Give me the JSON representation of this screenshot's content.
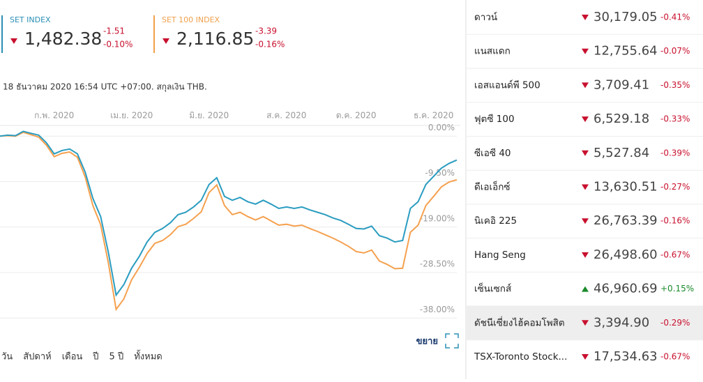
{
  "header": {
    "indices": [
      {
        "name": "SET INDEX",
        "value": "1,482.38",
        "change": "-1.51",
        "change_pct": "-0.10%",
        "color": "#2a8fb5"
      },
      {
        "name": "SET 100 INDEX",
        "value": "2,116.85",
        "change": "-3.39",
        "change_pct": "-0.16%",
        "color": "#f0a04b"
      }
    ]
  },
  "timestamp": "18 ธันวาคม 2020 16:54 UTC +07:00. สกุลเงิน THB.",
  "chart_data": {
    "type": "line",
    "categories": [
      null,
      null,
      null,
      null,
      null,
      null,
      null,
      "ก.พ. 2020",
      null,
      null,
      null,
      null,
      null,
      null,
      null,
      null,
      null,
      "เม.ย. 2020",
      null,
      null,
      null,
      null,
      null,
      null,
      null,
      null,
      null,
      "มิ.ย. 2020",
      null,
      null,
      null,
      null,
      null,
      null,
      null,
      null,
      null,
      "ส.ค. 2020",
      null,
      null,
      null,
      null,
      null,
      null,
      null,
      null,
      "ต.ค. 2020",
      null,
      null,
      null,
      null,
      null,
      null,
      null,
      null,
      null,
      "ธ.ค. 2020",
      null,
      null,
      null
    ],
    "series": [
      {
        "name": "SET INDEX",
        "color": "#2a9cc0",
        "values": [
          0,
          0.2,
          0.1,
          1.0,
          0.6,
          0.2,
          -1.4,
          -3.7,
          -3.0,
          -2.7,
          -3.7,
          -7.5,
          -13,
          -16.8,
          -24.3,
          -33.2,
          -31,
          -27.6,
          -25.1,
          -22.1,
          -20.1,
          -19.3,
          -18.1,
          -16.4,
          -15.9,
          -14.8,
          -13.4,
          -10.1,
          -8.7,
          -12.6,
          -13.4,
          -12.8,
          -13.7,
          -14.2,
          -13.4,
          -14.2,
          -15.1,
          -14.8,
          -15.1,
          -14.8,
          -15.4,
          -15.9,
          -16.4,
          -17.1,
          -17.6,
          -18.4,
          -19.3,
          -19.4,
          -18.8,
          -20.8,
          -21.3,
          -22.1,
          -21.8,
          -15.1,
          -13.7,
          -10.1,
          -8.4,
          -6.7,
          -5.7,
          -5.0
        ]
      },
      {
        "name": "SET 100 INDEX",
        "color": "#f5a04e",
        "values": [
          0,
          0.1,
          0.0,
          0.8,
          0.3,
          -0.2,
          -1.9,
          -4.3,
          -3.6,
          -3.3,
          -4.4,
          -8.5,
          -14.5,
          -18.5,
          -26.5,
          -36.2,
          -34,
          -30,
          -27.4,
          -24.5,
          -22.4,
          -21.8,
          -20.6,
          -18.9,
          -18.4,
          -17.2,
          -15.8,
          -11.8,
          -10.2,
          -14.5,
          -16.4,
          -15.9,
          -16.8,
          -17.5,
          -16.8,
          -17.7,
          -18.6,
          -18.4,
          -18.8,
          -18.6,
          -19.3,
          -19.9,
          -20.6,
          -21.3,
          -22.1,
          -23.0,
          -24.1,
          -24.4,
          -23.8,
          -26.1,
          -26.8,
          -27.7,
          -27.6,
          -20.1,
          -18.6,
          -14.5,
          -12.6,
          -10.6,
          -9.6,
          -9.1
        ]
      }
    ],
    "ylim": [
      -40,
      1.5
    ],
    "yticks": [
      {
        "value": 0,
        "label": "0.00%"
      },
      {
        "value": -9.5,
        "label": "-9.50%"
      },
      {
        "value": -19,
        "label": "-19.00%"
      },
      {
        "value": -28.5,
        "label": "-28.50%"
      },
      {
        "value": -38,
        "label": "-38.00%"
      }
    ],
    "grid": true
  },
  "expand_label": "ขยาย",
  "ranges": [
    "วัน",
    "สัปดาห์",
    "เดือน",
    "ปี",
    "5 ปี",
    "ทั้งหมด"
  ],
  "markets": [
    {
      "name": "ดาวน์",
      "value": "30,179.05",
      "change": "-0.41%",
      "direction": "down"
    },
    {
      "name": "แนสแดก",
      "value": "12,755.64",
      "change": "-0.07%",
      "direction": "down"
    },
    {
      "name": "เอสแอนด์พี 500",
      "value": "3,709.41",
      "change": "-0.35%",
      "direction": "down"
    },
    {
      "name": "ฟุตซี 100",
      "value": "6,529.18",
      "change": "-0.33%",
      "direction": "down"
    },
    {
      "name": "ซีเอซี 40",
      "value": "5,527.84",
      "change": "-0.39%",
      "direction": "down"
    },
    {
      "name": "ดีเอเอ็กซ์",
      "value": "13,630.51",
      "change": "-0.27%",
      "direction": "down"
    },
    {
      "name": "นิเคอิ 225",
      "value": "26,763.39",
      "change": "-0.16%",
      "direction": "down"
    },
    {
      "name": "Hang Seng",
      "value": "26,498.60",
      "change": "-0.67%",
      "direction": "down"
    },
    {
      "name": "เซ็นเซกส์",
      "value": "46,960.69",
      "change": "+0.15%",
      "direction": "up"
    },
    {
      "name": "ดัชนีเซี่ยงไฮ้คอมโพสิต",
      "value": "3,394.90",
      "change": "-0.29%",
      "direction": "down",
      "highlighted": true
    },
    {
      "name": "TSX-Toronto Stock...",
      "value": "17,534.63",
      "change": "-0.67%",
      "direction": "down"
    }
  ]
}
